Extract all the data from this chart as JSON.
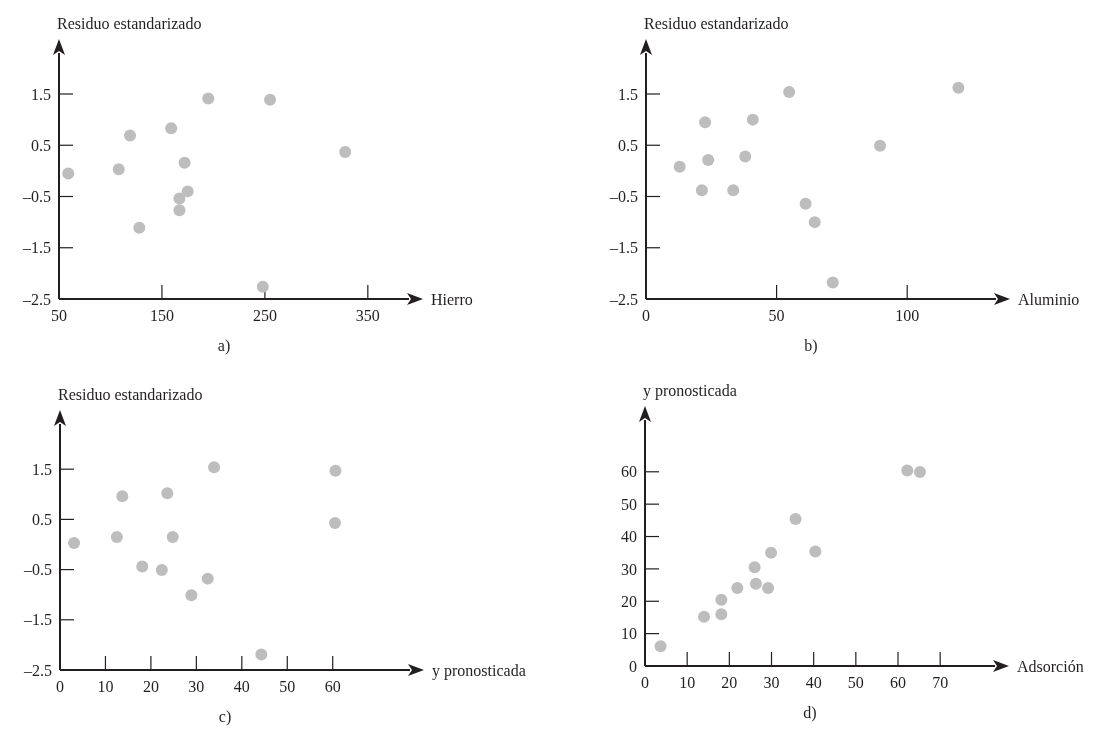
{
  "chart_data": [
    {
      "type": "scatter",
      "ylabel": "Residuo estandarizado",
      "xlabel": "Hierro",
      "annotations": [
        "a)"
      ],
      "marker": "circle",
      "grid": false,
      "xlim": [
        50,
        390
      ],
      "xticks": [
        50,
        150,
        250,
        350
      ],
      "ylim": [
        -2.5,
        2.3
      ],
      "yticks": [
        {
          "value": -2.5,
          "label": "–2.5"
        },
        {
          "value": -1.5,
          "label": "–1.5"
        },
        {
          "value": -0.5,
          "label": "–0.5"
        },
        0.5,
        1.5
      ],
      "series": [
        {
          "color": "#bdbdbd",
          "x": [
            59,
            108,
            119,
            128,
            159,
            172,
            175,
            167,
            167,
            195,
            255,
            248,
            328
          ],
          "values": [
            -0.05,
            0.03,
            0.69,
            -1.11,
            0.83,
            0.16,
            -0.4,
            -0.54,
            -0.77,
            1.41,
            1.39,
            -2.26,
            0.37
          ]
        }
      ]
    },
    {
      "type": "scatter",
      "ylabel": "Residuo estandarizado",
      "xlabel": "Aluminio",
      "annotations": [
        "b)"
      ],
      "marker": "circle",
      "grid": false,
      "xlim": [
        0,
        134
      ],
      "xticks": [
        0,
        50,
        100
      ],
      "ylim": [
        -2.5,
        2.3
      ],
      "yticks": [
        {
          "value": -2.5,
          "label": "–2.5"
        },
        {
          "value": -1.5,
          "label": "–1.5"
        },
        {
          "value": -0.5,
          "label": "–0.5"
        },
        0.5,
        1.5
      ],
      "series": [
        {
          "color": "#bdbdbd",
          "x": [
            12.9,
            21.4,
            22.6,
            23.8,
            33.4,
            38,
            40.9,
            54.8,
            61.1,
            64.6,
            71.5,
            89.6,
            119.6
          ],
          "values": [
            0.08,
            -0.38,
            0.95,
            0.21,
            -0.38,
            0.28,
            1.0,
            1.54,
            -0.64,
            -1.0,
            -2.18,
            0.49,
            1.62
          ]
        }
      ]
    },
    {
      "type": "scatter",
      "ylabel": "Residuo estandarizado",
      "xlabel": "y pronosticada",
      "annotations": [
        "c)"
      ],
      "marker": "circle",
      "grid": false,
      "xlim": [
        0,
        77
      ],
      "xticks": [
        0,
        10,
        20,
        30,
        40,
        50,
        60
      ],
      "ylim": [
        -2.5,
        2.4
      ],
      "yticks": [
        {
          "value": -2.5,
          "label": "–2.5"
        },
        {
          "value": -1.5,
          "label": "–1.5"
        },
        {
          "value": -0.5,
          "label": "–0.5"
        },
        0.5,
        1.5
      ],
      "series": [
        {
          "color": "#bdbdbd",
          "x": [
            3.1,
            12.5,
            13.7,
            18.1,
            22.4,
            23.6,
            24.8,
            28.9,
            32.5,
            33.9,
            44.3,
            60.6,
            60.5
          ],
          "values": [
            0.03,
            0.15,
            0.96,
            -0.44,
            -0.51,
            1.02,
            0.15,
            -1.01,
            -0.68,
            1.54,
            -2.19,
            1.47,
            0.43
          ]
        }
      ]
    },
    {
      "type": "scatter",
      "ylabel": "y pronosticada",
      "xlabel": "Adsorción",
      "annotations": [
        "d)"
      ],
      "marker": "circle",
      "grid": false,
      "xlim": [
        0,
        83
      ],
      "xticks": [
        0,
        10,
        20,
        30,
        40,
        50,
        60,
        70
      ],
      "ylim": [
        0,
        76
      ],
      "yticks": [
        0,
        10,
        20,
        30,
        40,
        50,
        60
      ],
      "series": [
        {
          "color": "#bdbdbd",
          "x": [
            3.7,
            14,
            18.1,
            18.1,
            21.9,
            26,
            26.3,
            29.2,
            29.9,
            35.7,
            40.4,
            62.2,
            65.2
          ],
          "values": [
            6.1,
            15.2,
            16,
            20.5,
            24.1,
            30.5,
            25.4,
            24.1,
            35,
            45.4,
            35.4,
            60.4,
            59.9
          ]
        }
      ]
    }
  ]
}
